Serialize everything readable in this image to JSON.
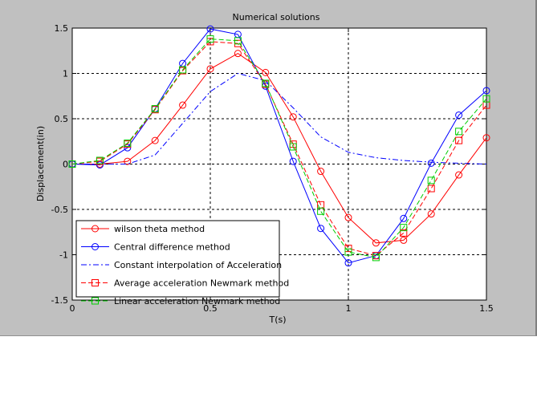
{
  "chart_data": {
    "type": "line",
    "title": "Numerical solutions",
    "xlabel": "T(s)",
    "ylabel": "Displacement(in)",
    "xlim": [
      0,
      1.5
    ],
    "ylim": [
      -1.5,
      1.5
    ],
    "xticks": [
      0,
      0.5,
      1,
      1.5
    ],
    "xtick_labels": [
      "0",
      "0.5",
      "1",
      "1.5"
    ],
    "yticks": [
      -1.5,
      -1,
      -0.5,
      0,
      0.5,
      1,
      1.5
    ],
    "ytick_labels": [
      "-1.5",
      "-1",
      "-0.5",
      "0",
      "0.5",
      "1",
      "1.5"
    ],
    "grid": true,
    "legend_position": "bottom-left",
    "x": [
      0,
      0.1,
      0.2,
      0.3,
      0.4,
      0.5,
      0.6,
      0.7,
      0.8,
      0.9,
      1.0,
      1.1,
      1.2,
      1.3,
      1.4,
      1.5
    ],
    "series": [
      {
        "name": "wilson theta method",
        "color": "#ff0000",
        "marker": "diamond-circle",
        "line": "solid",
        "values": [
          0,
          0.0,
          0.03,
          0.26,
          0.65,
          1.05,
          1.22,
          1.01,
          0.52,
          -0.08,
          -0.59,
          -0.87,
          -0.84,
          -0.55,
          -0.12,
          0.29
        ]
      },
      {
        "name": "Central difference method",
        "color": "#0000ff",
        "marker": "circle",
        "line": "solid",
        "values": [
          0,
          -0.01,
          0.18,
          0.61,
          1.11,
          1.49,
          1.43,
          0.86,
          0.03,
          -0.71,
          -1.09,
          -1.01,
          -0.6,
          0.01,
          0.54,
          0.81
        ]
      },
      {
        "name": "Constant interpolation of Acceleration",
        "color": "#0000ff",
        "marker": "none",
        "line": "dashdot",
        "values": [
          0,
          0.0,
          0.0,
          0.1,
          0.45,
          0.8,
          1.0,
          0.92,
          0.62,
          0.3,
          0.13,
          0.07,
          0.04,
          0.02,
          0.01,
          0.0
        ]
      },
      {
        "name": "Average acceleration Newmark method",
        "color": "#ff0000",
        "marker": "square",
        "line": "dashed",
        "values": [
          0,
          0.03,
          0.22,
          0.6,
          1.03,
          1.35,
          1.33,
          0.88,
          0.22,
          -0.45,
          -0.93,
          -1.01,
          -0.76,
          -0.27,
          0.26,
          0.65
        ]
      },
      {
        "name": "Linear acceleration Newmark method",
        "color": "#00cc00",
        "marker": "square",
        "line": "dashed",
        "values": [
          0,
          0.04,
          0.23,
          0.61,
          1.04,
          1.38,
          1.36,
          0.89,
          0.19,
          -0.52,
          -0.97,
          -1.03,
          -0.7,
          -0.18,
          0.36,
          0.72
        ]
      }
    ]
  }
}
